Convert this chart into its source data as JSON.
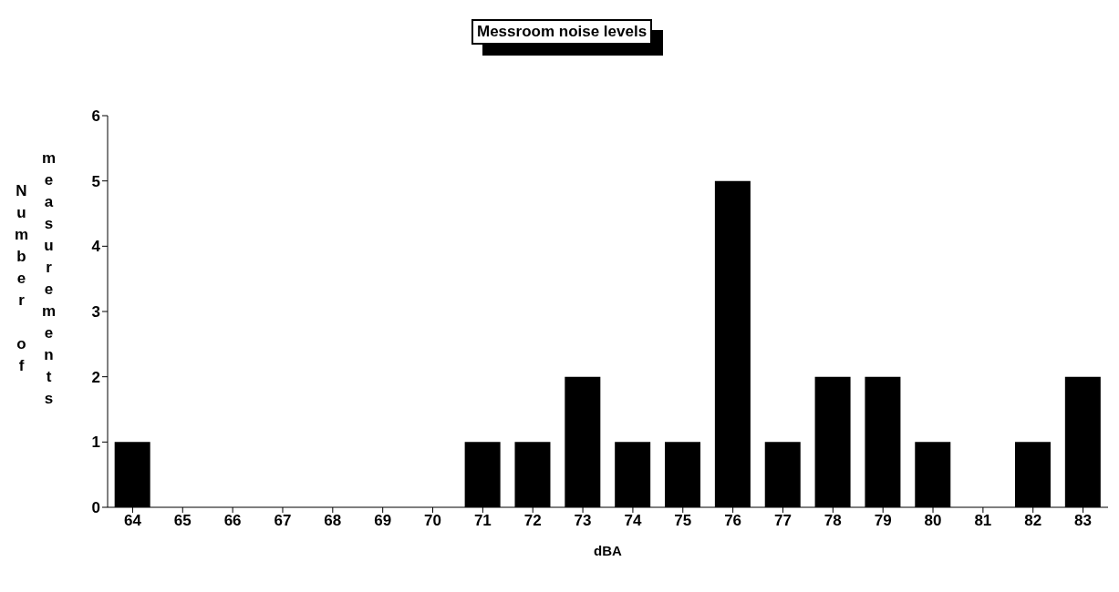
{
  "chart_data": {
    "type": "bar",
    "title": "Messroom noise levels",
    "xlabel": "dBA",
    "ylabel": "Number of measurements",
    "categories": [
      "64",
      "65",
      "66",
      "67",
      "68",
      "69",
      "70",
      "71",
      "72",
      "73",
      "74",
      "75",
      "76",
      "77",
      "78",
      "79",
      "80",
      "81",
      "82",
      "83"
    ],
    "values": [
      1,
      0,
      0,
      0,
      0,
      0,
      0,
      1,
      1,
      2,
      1,
      1,
      5,
      1,
      2,
      2,
      1,
      0,
      1,
      2
    ],
    "color": "#000000",
    "ylim": [
      0,
      6
    ],
    "yticks": [
      0,
      1,
      2,
      3,
      4,
      5,
      6
    ],
    "grid": false,
    "legend": false
  }
}
